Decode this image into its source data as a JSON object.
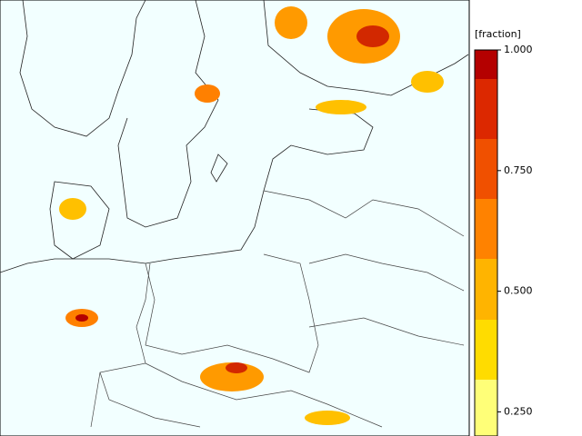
{
  "colorbar": {
    "title": "[fraction]",
    "limits": [
      0.2,
      1
    ],
    "ticks": [
      {
        "value": 1,
        "label": "1.000"
      },
      {
        "value": 0.75,
        "label": "0.750"
      },
      {
        "value": 0.5,
        "label": "0.500"
      },
      {
        "value": 0.25,
        "label": "0.250"
      }
    ]
  }
}
